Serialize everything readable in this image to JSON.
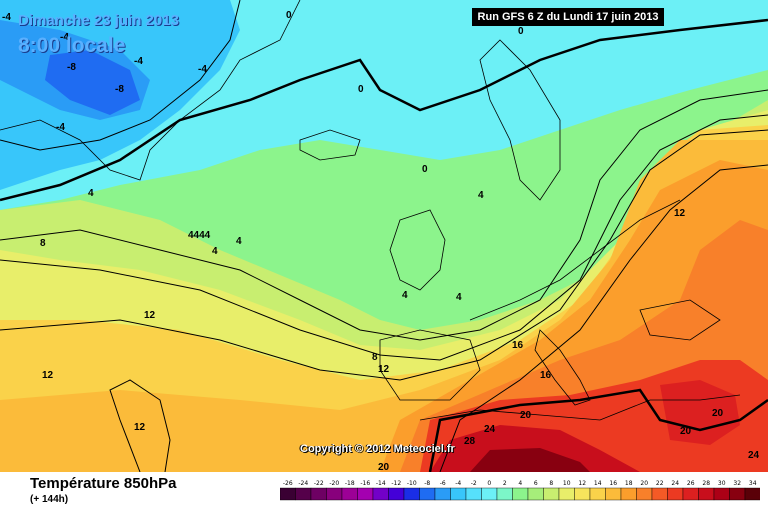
{
  "header": {
    "date": "Dimanche 23 juin 2013",
    "time": "8:00 locale",
    "run": "Run GFS 6 Z du Lundi 17 juin 2013"
  },
  "map": {
    "copyright": "Copyright © 2012 Meteociel.fr",
    "isotherm_labels": [
      "0",
      "-4",
      "-8",
      "-4",
      "-8",
      "-4",
      "-4",
      "4",
      "4",
      "8",
      "4",
      "4",
      "4444",
      "4",
      "4",
      "12",
      "12",
      "12",
      "16",
      "16",
      "20",
      "20",
      "20",
      "24",
      "28",
      "20",
      "24",
      "8",
      "12",
      "-4"
    ]
  },
  "legend": {
    "title": "Température 850hPa",
    "subtitle": "(+ 144h)",
    "ticks": [
      "-26",
      "-24",
      "-22",
      "-20",
      "-18",
      "-16",
      "-14",
      "-12",
      "-10",
      "-8",
      "-6",
      "-4",
      "-2",
      "0",
      "2",
      "4",
      "6",
      "8",
      "10",
      "12",
      "14",
      "16",
      "18",
      "20",
      "22",
      "24",
      "26",
      "28",
      "30",
      "32",
      "34"
    ],
    "colors": [
      "#3a0033",
      "#55004a",
      "#6e0063",
      "#88007c",
      "#9c0096",
      "#a400b0",
      "#7300c8",
      "#4400d8",
      "#1a2ee6",
      "#1f6cf2",
      "#2a9cf6",
      "#38c6fa",
      "#56e0fb",
      "#6cf0f6",
      "#7cf6c8",
      "#8cf48c",
      "#a6ee7a",
      "#c8ee70",
      "#e8ee6a",
      "#f6e45c",
      "#fad24a",
      "#fbbb3a",
      "#fb9e2c",
      "#f8802a",
      "#f45a26",
      "#ec3a22",
      "#dc2020",
      "#c80e1c",
      "#ac0016",
      "#880010",
      "#5a0008"
    ]
  }
}
